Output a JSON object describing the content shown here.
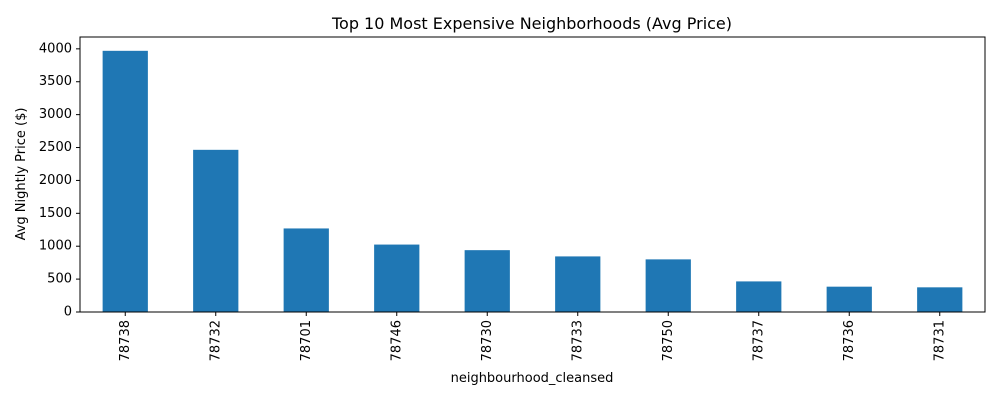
{
  "chart_data": {
    "type": "bar",
    "title": "Top 10 Most Expensive Neighborhoods (Avg Price)",
    "xlabel": "neighbourhood_cleansed",
    "ylabel": "Avg Nightly Price ($)",
    "categories": [
      "78738",
      "78732",
      "78701",
      "78746",
      "78730",
      "78733",
      "78750",
      "78737",
      "78736",
      "78731"
    ],
    "values": [
      3970,
      2465,
      1270,
      1025,
      940,
      845,
      800,
      465,
      385,
      375
    ],
    "yticks": [
      0,
      500,
      1000,
      1500,
      2000,
      2500,
      3000,
      3500,
      4000
    ],
    "ylim": [
      0,
      4180
    ],
    "bar_color": "#1f77b4",
    "grid": false,
    "legend": false
  }
}
